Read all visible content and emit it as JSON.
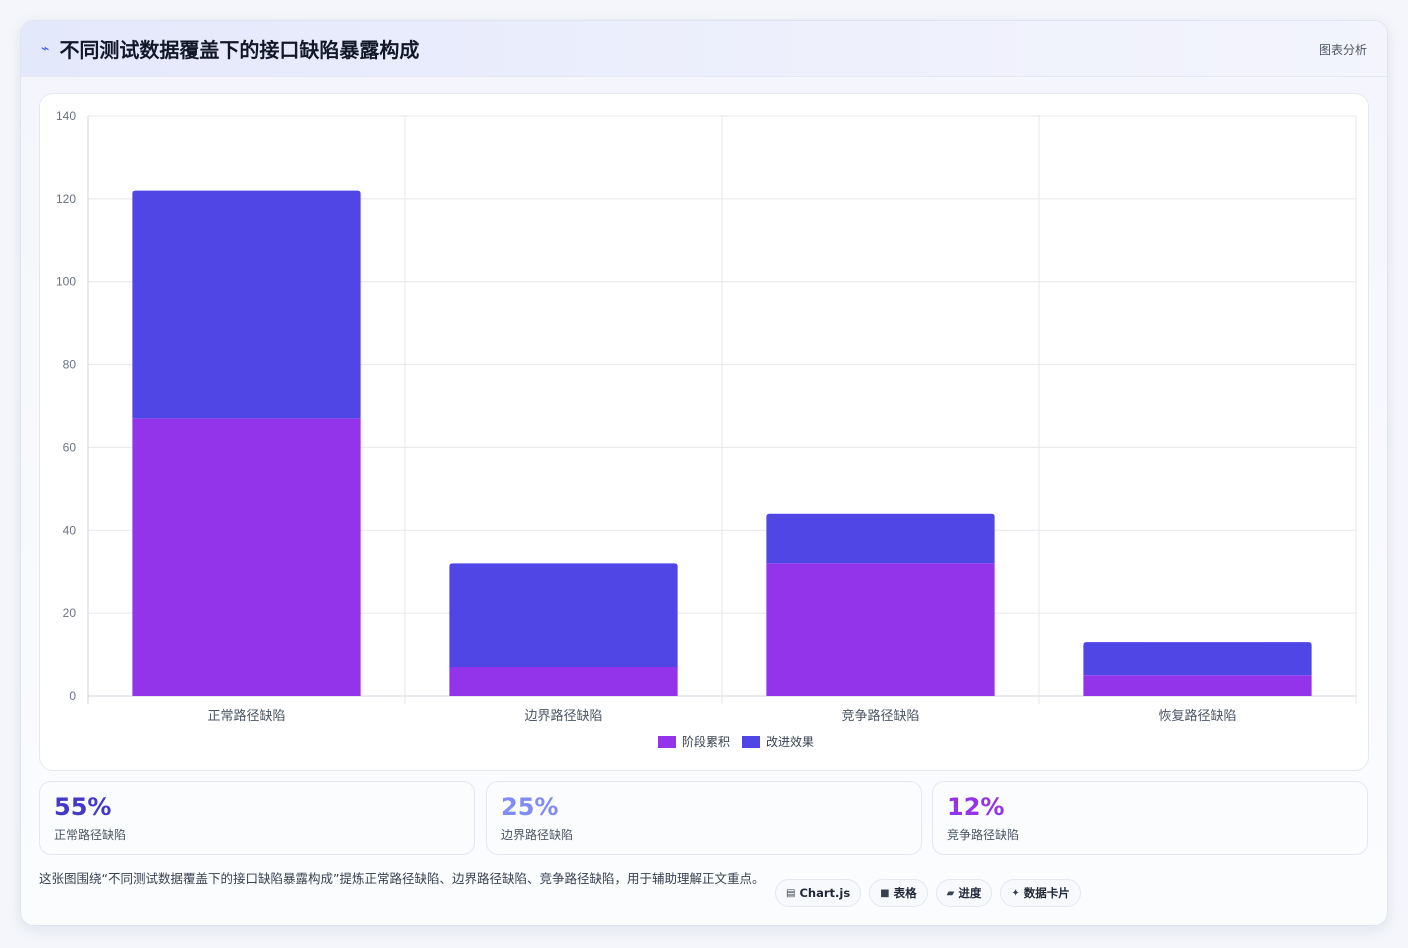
{
  "header": {
    "icon": "chart-line-icon",
    "icon_glyph": "⌁",
    "title": "不同测试数据覆盖下的接口缺陷暴露构成",
    "tag": "图表分析"
  },
  "chart_data": {
    "type": "bar",
    "stacked": true,
    "categories": [
      "正常路径缺陷",
      "边界路径缺陷",
      "竞争路径缺陷",
      "恢复路径缺陷"
    ],
    "series": [
      {
        "name": "阶段累积",
        "color": "#9333ea",
        "values": [
          67,
          7,
          32,
          5
        ]
      },
      {
        "name": "改进效果",
        "color": "#4f46e5",
        "values": [
          55,
          25,
          12,
          8
        ]
      }
    ],
    "ylim": [
      0,
      140
    ],
    "yticks": [
      0,
      20,
      40,
      60,
      80,
      100,
      120,
      140
    ],
    "grid": true,
    "legend_position": "bottom"
  },
  "stats": [
    {
      "value": "55%",
      "label": "正常路径缺陷",
      "color": "#4338ca"
    },
    {
      "value": "25%",
      "label": "边界路径缺陷",
      "color": "#818cf8"
    },
    {
      "value": "12%",
      "label": "竞争路径缺陷",
      "color": "#9333ea"
    }
  ],
  "footer": {
    "text": "这张图围绕“不同测试数据覆盖下的接口缺陷暴露构成”提炼正常路径缺陷、边界路径缺陷、竞争路径缺陷，用于辅助理解正文重点。",
    "pills": [
      {
        "icon": "chartjs-icon",
        "glyph": "▤",
        "label": "Chart.js"
      },
      {
        "icon": "table-icon",
        "glyph": "■",
        "label": "表格"
      },
      {
        "icon": "progress-icon",
        "glyph": "▰",
        "label": "进度"
      },
      {
        "icon": "data-card-icon",
        "glyph": "✦",
        "label": "数据卡片"
      }
    ]
  }
}
